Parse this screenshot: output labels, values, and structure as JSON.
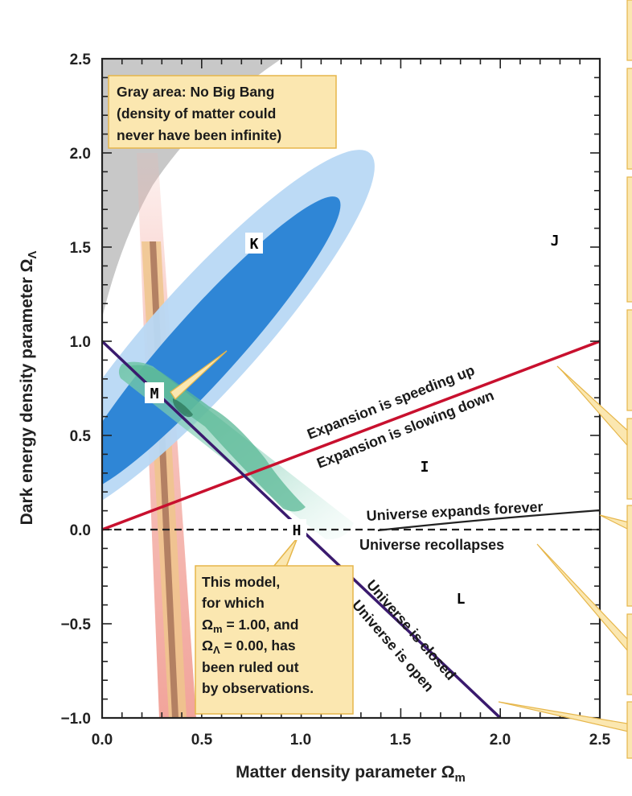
{
  "chart_data": {
    "type": "line",
    "xlabel": "Matter density parameter Ω",
    "xlabel_sub": "m",
    "ylabel": "Dark energy density parameter Ω",
    "ylabel_sub": "Λ",
    "xlim": [
      0.0,
      2.5
    ],
    "ylim": [
      -1.0,
      2.5
    ],
    "x_ticks": [
      "0.0",
      "0.5",
      "1.0",
      "1.5",
      "2.0",
      "2.5"
    ],
    "y_ticks": [
      "2.5",
      "2.0",
      "1.5",
      "1.0",
      "0.5",
      "0.0",
      "−0.5",
      "−1.0"
    ],
    "series": [
      {
        "points": [
          [
            0.0,
            1.0
          ],
          [
            2.0,
            -1.0
          ]
        ],
        "color": "#3a1a6e"
      },
      {
        "points": [
          [
            0.0,
            0.0
          ],
          [
            2.5,
            1.0
          ]
        ],
        "color": "#c8102e"
      },
      {
        "points": [
          [
            0.0,
            0.0
          ],
          [
            2.5,
            0.0
          ]
        ],
        "color": "#222222"
      }
    ],
    "region_labels": {
      "speeding_up": "Expansion is speeding up",
      "slowing_down": "Expansion is slowing down",
      "expands_forever": "Universe expands forever",
      "recollapses": "Universe recollapses",
      "closed": "Universe is closed",
      "open": "Universe is open"
    },
    "gray_note": [
      "Gray area: No Big Bang",
      "(density of matter could",
      "never have been infinite)"
    ],
    "model_note": {
      "line1": "This model,",
      "line2": "for which",
      "line3_sym": "Ω",
      "line3_sub": "m",
      "line3_rest": " = 1.00, and",
      "line4_sym": "Ω",
      "line4_sub": "Λ",
      "line4_rest": " = 0.00, has",
      "line5": "been ruled out",
      "line6": "by observations."
    },
    "point_letters": {
      "K": "K",
      "J": "J",
      "M": "M",
      "I": "I",
      "H": "H",
      "L": "L"
    },
    "colors": {
      "gray_region": "#c8c8c8",
      "ellipse_outer": "#b8d8f4",
      "ellipse_inner": "#2f86d6",
      "band_outer": "#f4b0a8",
      "band_inner": "#e8c080",
      "band_core": "#a07050",
      "green": "#6cc4a4",
      "callout": "#fbe7b0",
      "callout_border": "#e6b64a"
    }
  }
}
